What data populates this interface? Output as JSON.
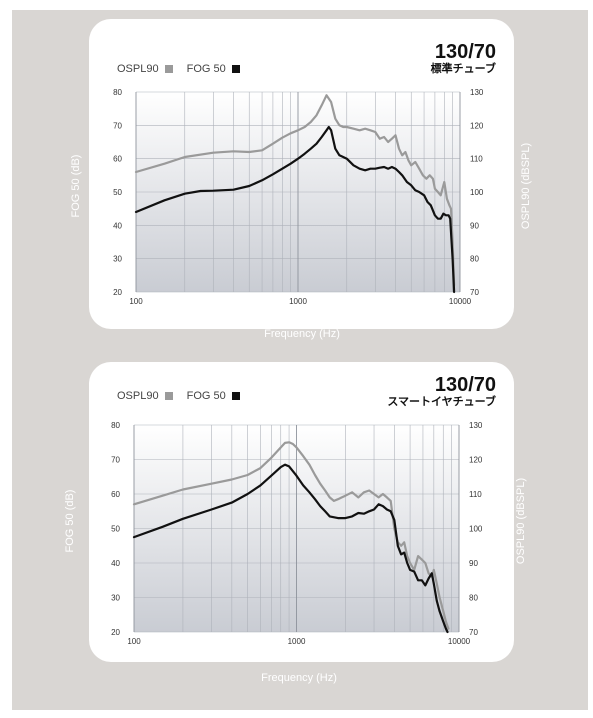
{
  "chart_data": [
    {
      "type": "line",
      "tag_number": "130/70",
      "tag_label": "標準チューブ",
      "xlabel": "Frequency (Hz)",
      "ylabel_left": "FOG 50 (dB)",
      "ylabel_right": "OSPL90 (dBSPL)",
      "xscale": "log",
      "xlim": [
        100,
        10000
      ],
      "xticks": [
        "100",
        "1000",
        "10000"
      ],
      "ylim_left": [
        20,
        80
      ],
      "yticks_left": [
        "80",
        "70",
        "60",
        "50",
        "40",
        "30",
        "20"
      ],
      "ylim_right": [
        70,
        130
      ],
      "yticks_right": [
        "130",
        "120",
        "110",
        "100",
        "90",
        "80",
        "70"
      ],
      "grid": true,
      "legend": "top-left",
      "series": [
        {
          "name": "OSPL90",
          "axis": "right",
          "color": "#9a9a9a",
          "points": [
            [
              100,
              106
            ],
            [
              150,
              108.5
            ],
            [
              200,
              110.5
            ],
            [
              300,
              111.8
            ],
            [
              400,
              112.2
            ],
            [
              500,
              112
            ],
            [
              600,
              112.5
            ],
            [
              700,
              114.5
            ],
            [
              800,
              116.3
            ],
            [
              900,
              117.6
            ],
            [
              1000,
              118.5
            ],
            [
              1100,
              119.5
            ],
            [
              1200,
              121
            ],
            [
              1300,
              123
            ],
            [
              1400,
              126
            ],
            [
              1500,
              129
            ],
            [
              1600,
              127
            ],
            [
              1700,
              122
            ],
            [
              1800,
              120
            ],
            [
              1900,
              119.5
            ],
            [
              2000,
              119.5
            ],
            [
              2200,
              119
            ],
            [
              2400,
              118.5
            ],
            [
              2600,
              119
            ],
            [
              2800,
              118.5
            ],
            [
              3000,
              118
            ],
            [
              3200,
              116
            ],
            [
              3400,
              116.5
            ],
            [
              3600,
              115
            ],
            [
              3800,
              116
            ],
            [
              4000,
              117
            ],
            [
              4200,
              113
            ],
            [
              4400,
              111
            ],
            [
              4600,
              112
            ],
            [
              4800,
              109.5
            ],
            [
              5000,
              108
            ],
            [
              5300,
              109
            ],
            [
              5600,
              107
            ],
            [
              5900,
              105
            ],
            [
              6200,
              104
            ],
            [
              6500,
              105
            ],
            [
              6800,
              104
            ],
            [
              7000,
              101
            ],
            [
              7300,
              100
            ],
            [
              7600,
              99
            ],
            [
              8000,
              103
            ],
            [
              8300,
              98
            ],
            [
              8600,
              96
            ],
            [
              8800,
              95
            ],
            [
              9000,
              85
            ],
            [
              9200,
              72
            ]
          ]
        },
        {
          "name": "FOG 50",
          "axis": "left",
          "color": "#111111",
          "points": [
            [
              100,
              44
            ],
            [
              150,
              47.5
            ],
            [
              200,
              49.5
            ],
            [
              250,
              50.3
            ],
            [
              300,
              50.4
            ],
            [
              400,
              50.7
            ],
            [
              500,
              51.8
            ],
            [
              600,
              53.5
            ],
            [
              700,
              55.3
            ],
            [
              800,
              57
            ],
            [
              900,
              58.5
            ],
            [
              1000,
              60
            ],
            [
              1100,
              61.5
            ],
            [
              1200,
              63
            ],
            [
              1300,
              64.5
            ],
            [
              1400,
              66.5
            ],
            [
              1500,
              68.5
            ],
            [
              1550,
              69.5
            ],
            [
              1600,
              68.5
            ],
            [
              1700,
              63
            ],
            [
              1800,
              61
            ],
            [
              1900,
              60.5
            ],
            [
              2000,
              60
            ],
            [
              2200,
              58
            ],
            [
              2400,
              57
            ],
            [
              2600,
              56.5
            ],
            [
              2800,
              57
            ],
            [
              3000,
              57
            ],
            [
              3200,
              57.3
            ],
            [
              3400,
              57.5
            ],
            [
              3600,
              57
            ],
            [
              3800,
              57.5
            ],
            [
              4000,
              57
            ],
            [
              4200,
              56
            ],
            [
              4400,
              55
            ],
            [
              4700,
              53
            ],
            [
              5000,
              52
            ],
            [
              5300,
              50.5
            ],
            [
              5600,
              50
            ],
            [
              6000,
              49
            ],
            [
              6300,
              47
            ],
            [
              6600,
              46
            ],
            [
              7000,
              43
            ],
            [
              7300,
              42
            ],
            [
              7600,
              42
            ],
            [
              7900,
              43.5
            ],
            [
              8200,
              43
            ],
            [
              8500,
              43
            ],
            [
              8700,
              42
            ],
            [
              9000,
              30
            ],
            [
              9200,
              20
            ]
          ]
        }
      ]
    },
    {
      "type": "line",
      "tag_number": "130/70",
      "tag_label": "スマートイヤチューブ",
      "xlabel": "Frequency (Hz)",
      "ylabel_left": "FOG 50 (dB)",
      "ylabel_right": "OSPL90 (dBSPL)",
      "xscale": "log",
      "xlim": [
        100,
        10000
      ],
      "xticks": [
        "100",
        "1000",
        "10000"
      ],
      "ylim_left": [
        20,
        80
      ],
      "yticks_left": [
        "80",
        "70",
        "60",
        "50",
        "40",
        "30",
        "20"
      ],
      "ylim_right": [
        70,
        130
      ],
      "yticks_right": [
        "130",
        "120",
        "110",
        "100",
        "90",
        "80",
        "70"
      ],
      "grid": true,
      "legend": "top-left",
      "series": [
        {
          "name": "OSPL90",
          "axis": "right",
          "color": "#9a9a9a",
          "points": [
            [
              100,
              107
            ],
            [
              150,
              109.5
            ],
            [
              200,
              111.3
            ],
            [
              300,
              113
            ],
            [
              400,
              114.2
            ],
            [
              500,
              115.5
            ],
            [
              600,
              117.5
            ],
            [
              700,
              120.5
            ],
            [
              800,
              123.5
            ],
            [
              850,
              124.8
            ],
            [
              900,
              125
            ],
            [
              950,
              124.5
            ],
            [
              1000,
              123.5
            ],
            [
              1100,
              121
            ],
            [
              1200,
              118.5
            ],
            [
              1300,
              115.5
            ],
            [
              1400,
              113
            ],
            [
              1500,
              111
            ],
            [
              1600,
              109
            ],
            [
              1700,
              108
            ],
            [
              1800,
              108.5
            ],
            [
              1900,
              109
            ],
            [
              2000,
              109.5
            ],
            [
              2200,
              110.5
            ],
            [
              2400,
              109
            ],
            [
              2600,
              110.5
            ],
            [
              2800,
              111
            ],
            [
              3000,
              110
            ],
            [
              3200,
              109
            ],
            [
              3400,
              110
            ],
            [
              3600,
              109
            ],
            [
              3800,
              108
            ],
            [
              4000,
              100
            ],
            [
              4200,
              96
            ],
            [
              4400,
              95
            ],
            [
              4600,
              96
            ],
            [
              4800,
              92
            ],
            [
              5000,
              90
            ],
            [
              5300,
              88
            ],
            [
              5600,
              92
            ],
            [
              5900,
              91
            ],
            [
              6200,
              90
            ],
            [
              6500,
              87
            ],
            [
              6800,
              86
            ],
            [
              7000,
              88
            ],
            [
              7300,
              84
            ],
            [
              7600,
              80
            ],
            [
              8000,
              76
            ],
            [
              8300,
              73
            ],
            [
              8600,
              71
            ]
          ]
        },
        {
          "name": "FOG 50",
          "axis": "left",
          "color": "#111111",
          "points": [
            [
              100,
              47.5
            ],
            [
              150,
              50.5
            ],
            [
              200,
              52.8
            ],
            [
              300,
              55.5
            ],
            [
              400,
              57.5
            ],
            [
              500,
              60
            ],
            [
              600,
              62.5
            ],
            [
              700,
              65.3
            ],
            [
              800,
              67.8
            ],
            [
              850,
              68.5
            ],
            [
              900,
              68
            ],
            [
              1000,
              65.3
            ],
            [
              1100,
              62.5
            ],
            [
              1200,
              60.5
            ],
            [
              1300,
              58.5
            ],
            [
              1400,
              56.5
            ],
            [
              1500,
              55
            ],
            [
              1600,
              53.5
            ],
            [
              1800,
              53
            ],
            [
              2000,
              53
            ],
            [
              2200,
              53.5
            ],
            [
              2400,
              54.5
            ],
            [
              2600,
              54.3
            ],
            [
              2800,
              55
            ],
            [
              3000,
              55.5
            ],
            [
              3200,
              57
            ],
            [
              3400,
              56.5
            ],
            [
              3600,
              55.5
            ],
            [
              3800,
              55
            ],
            [
              4000,
              52.5
            ],
            [
              4200,
              45
            ],
            [
              4400,
              42.5
            ],
            [
              4600,
              43
            ],
            [
              4800,
              40
            ],
            [
              5000,
              38
            ],
            [
              5300,
              37.5
            ],
            [
              5600,
              35
            ],
            [
              5900,
              35
            ],
            [
              6200,
              33.5
            ],
            [
              6500,
              35.5
            ],
            [
              6800,
              37
            ],
            [
              7000,
              34
            ],
            [
              7300,
              29
            ],
            [
              7600,
              26
            ],
            [
              8000,
              23
            ],
            [
              8300,
              21
            ],
            [
              8500,
              20
            ]
          ]
        }
      ]
    }
  ]
}
